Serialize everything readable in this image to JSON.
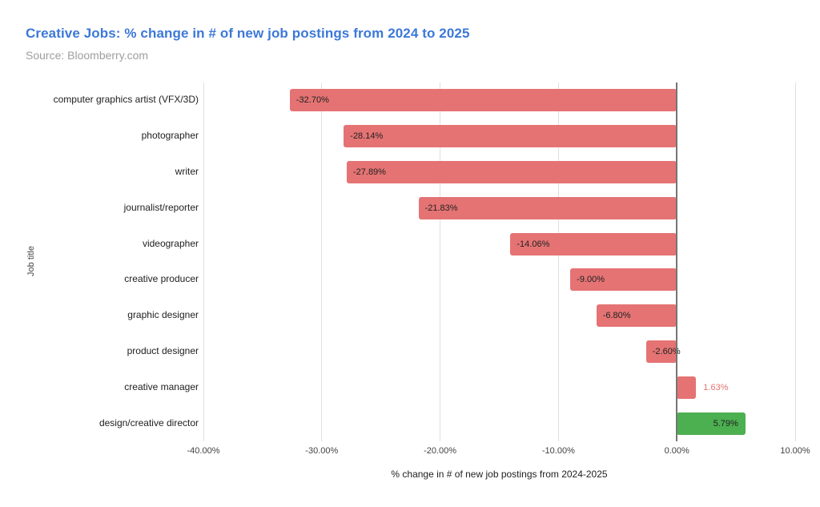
{
  "header": {
    "title": "Creative Jobs: % change in # of new job postings from 2024 to 2025",
    "source": "Source: Bloomberry.com"
  },
  "colors": {
    "title": "#3c78d8",
    "source_text": "#9e9e9e",
    "negative_bar": "#e57373",
    "positive_bar": "#4caf50",
    "gridline": "#e0e0e0",
    "zero_line": "#757575",
    "label_text": "#212121"
  },
  "chart_data": {
    "type": "bar",
    "orientation": "horizontal",
    "title": "Creative Jobs: % change in # of new job postings from 2024 to 2025",
    "subtitle": "Source: Bloomberry.com",
    "xlabel": "% change in # of new job postings from 2024-2025",
    "ylabel": "Job title",
    "xlim": [
      -40,
      10
    ],
    "grid": true,
    "xticks": [
      {
        "value": -40,
        "label": "-40.00%"
      },
      {
        "value": -30,
        "label": "-30.00%"
      },
      {
        "value": -20,
        "label": "-20.00%"
      },
      {
        "value": -10,
        "label": "-10.00%"
      },
      {
        "value": 0,
        "label": "0.00%"
      },
      {
        "value": 10,
        "label": "10.00%"
      }
    ],
    "categories": [
      "computer graphics artist (VFX/3D)",
      "photographer",
      "writer",
      "journalist/reporter",
      "videographer",
      "creative producer",
      "graphic designer",
      "product designer",
      "creative manager",
      "design/creative director"
    ],
    "values": [
      -32.7,
      -28.14,
      -27.89,
      -21.83,
      -14.06,
      -9.0,
      -6.8,
      -2.6,
      1.63,
      5.79
    ],
    "bars": [
      {
        "category": "computer graphics artist (VFX/3D)",
        "value": -32.7,
        "label": "-32.70%",
        "color": "#e57373",
        "label_position": "inside-left",
        "label_color": "#212121"
      },
      {
        "category": "photographer",
        "value": -28.14,
        "label": "-28.14%",
        "color": "#e57373",
        "label_position": "inside-left",
        "label_color": "#212121"
      },
      {
        "category": "writer",
        "value": -27.89,
        "label": "-27.89%",
        "color": "#e57373",
        "label_position": "inside-left",
        "label_color": "#212121"
      },
      {
        "category": "journalist/reporter",
        "value": -21.83,
        "label": "-21.83%",
        "color": "#e57373",
        "label_position": "inside-left",
        "label_color": "#212121"
      },
      {
        "category": "videographer",
        "value": -14.06,
        "label": "-14.06%",
        "color": "#e57373",
        "label_position": "inside-left",
        "label_color": "#212121"
      },
      {
        "category": "creative producer",
        "value": -9.0,
        "label": "-9.00%",
        "color": "#e57373",
        "label_position": "inside-left",
        "label_color": "#212121"
      },
      {
        "category": "graphic designer",
        "value": -6.8,
        "label": "-6.80%",
        "color": "#e57373",
        "label_position": "inside-left",
        "label_color": "#212121"
      },
      {
        "category": "product designer",
        "value": -2.6,
        "label": "-2.60%",
        "color": "#e57373",
        "label_position": "inside-left",
        "label_color": "#212121"
      },
      {
        "category": "creative manager",
        "value": 1.63,
        "label": "1.63%",
        "color": "#e57373",
        "label_position": "outside-right",
        "label_color": "#e57373"
      },
      {
        "category": "design/creative director",
        "value": 5.79,
        "label": "5.79%",
        "color": "#4caf50",
        "label_position": "inside-right",
        "label_color": "#212121"
      }
    ]
  }
}
